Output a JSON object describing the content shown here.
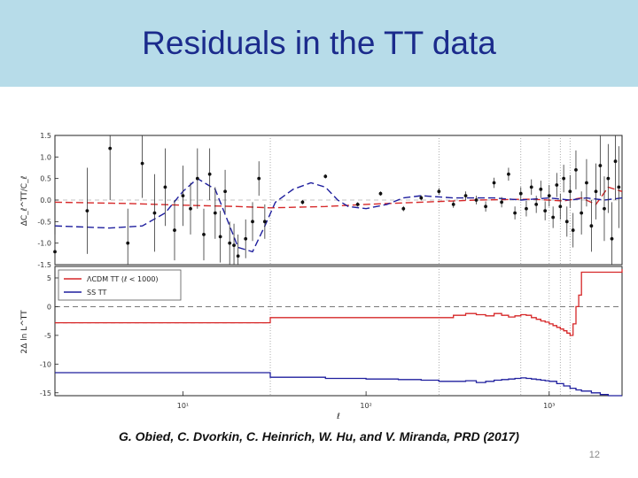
{
  "slide": {
    "title": "Residuals in the TT data",
    "caption": "G. Obied, C. Dvorkin, C. Heinrich, W. Hu, and V. Miranda, PRD  (2017)",
    "page_number": "12"
  },
  "colors": {
    "title_bar": "#b7dce9",
    "title_text": "#1b2b8c",
    "red_series": "#d62728",
    "blue_series": "#1f1f9e",
    "data_points": "#111111"
  },
  "chart_data": [
    {
      "type": "scatter",
      "panel": "top",
      "ylabel": "ΔC_ℓ^TT/C_ℓ",
      "xscale": "log",
      "xlim": [
        2,
        2500
      ],
      "ylim": [
        -1.5,
        1.5
      ],
      "yticks": [
        "1.5",
        "1.0",
        "0.5",
        "0.0",
        "-0.5",
        "-1.0",
        "-1.5"
      ],
      "ytick_values": [
        1.5,
        1.0,
        0.5,
        0.0,
        -0.5,
        -1.0,
        -1.5
      ],
      "vlines_x": [
        30,
        250,
        700,
        1000,
        1150,
        1300
      ],
      "points": [
        {
          "x": 2,
          "y": -1.2,
          "e": 0.4
        },
        {
          "x": 3,
          "y": -0.25,
          "e": 1.0
        },
        {
          "x": 4,
          "y": 1.2,
          "e": 1.2
        },
        {
          "x": 5,
          "y": -1.0,
          "e": 0.8
        },
        {
          "x": 6,
          "y": 0.85,
          "e": 0.8
        },
        {
          "x": 7,
          "y": -0.3,
          "e": 0.9
        },
        {
          "x": 8,
          "y": 0.3,
          "e": 0.9
        },
        {
          "x": 9,
          "y": -0.7,
          "e": 0.7
        },
        {
          "x": 10,
          "y": 0.1,
          "e": 0.7
        },
        {
          "x": 11,
          "y": -0.2,
          "e": 0.6
        },
        {
          "x": 12,
          "y": 0.5,
          "e": 0.7
        },
        {
          "x": 13,
          "y": -0.8,
          "e": 0.6
        },
        {
          "x": 14,
          "y": 0.6,
          "e": 0.6
        },
        {
          "x": 15,
          "y": -0.3,
          "e": 0.6
        },
        {
          "x": 16,
          "y": -0.85,
          "e": 0.6
        },
        {
          "x": 17,
          "y": 0.2,
          "e": 0.5
        },
        {
          "x": 18,
          "y": -1.0,
          "e": 0.5
        },
        {
          "x": 19,
          "y": -1.05,
          "e": 0.5
        },
        {
          "x": 20,
          "y": -1.3,
          "e": 0.5
        },
        {
          "x": 22,
          "y": -0.9,
          "e": 0.45
        },
        {
          "x": 24,
          "y": -0.5,
          "e": 0.45
        },
        {
          "x": 26,
          "y": 0.5,
          "e": 0.4
        },
        {
          "x": 28,
          "y": -0.5,
          "e": 0.4
        },
        {
          "x": 45,
          "y": -0.05,
          "e": 0.05
        },
        {
          "x": 60,
          "y": 0.55,
          "e": 0.05
        },
        {
          "x": 90,
          "y": -0.1,
          "e": 0.05
        },
        {
          "x": 120,
          "y": 0.15,
          "e": 0.05
        },
        {
          "x": 160,
          "y": -0.2,
          "e": 0.06
        },
        {
          "x": 200,
          "y": 0.05,
          "e": 0.06
        },
        {
          "x": 250,
          "y": 0.2,
          "e": 0.08
        },
        {
          "x": 300,
          "y": -0.1,
          "e": 0.08
        },
        {
          "x": 350,
          "y": 0.1,
          "e": 0.1
        },
        {
          "x": 400,
          "y": 0.0,
          "e": 0.1
        },
        {
          "x": 450,
          "y": -0.15,
          "e": 0.12
        },
        {
          "x": 500,
          "y": 0.4,
          "e": 0.12
        },
        {
          "x": 550,
          "y": -0.05,
          "e": 0.12
        },
        {
          "x": 600,
          "y": 0.6,
          "e": 0.15
        },
        {
          "x": 650,
          "y": -0.3,
          "e": 0.15
        },
        {
          "x": 700,
          "y": 0.15,
          "e": 0.15
        },
        {
          "x": 750,
          "y": -0.2,
          "e": 0.18
        },
        {
          "x": 800,
          "y": 0.3,
          "e": 0.18
        },
        {
          "x": 850,
          "y": -0.1,
          "e": 0.2
        },
        {
          "x": 900,
          "y": 0.25,
          "e": 0.2
        },
        {
          "x": 950,
          "y": -0.25,
          "e": 0.22
        },
        {
          "x": 1000,
          "y": 0.1,
          "e": 0.25
        },
        {
          "x": 1050,
          "y": -0.4,
          "e": 0.25
        },
        {
          "x": 1100,
          "y": 0.35,
          "e": 0.28
        },
        {
          "x": 1150,
          "y": -0.15,
          "e": 0.3
        },
        {
          "x": 1200,
          "y": 0.5,
          "e": 0.32
        },
        {
          "x": 1250,
          "y": -0.5,
          "e": 0.35
        },
        {
          "x": 1300,
          "y": 0.2,
          "e": 0.38
        },
        {
          "x": 1350,
          "y": -0.7,
          "e": 0.4
        },
        {
          "x": 1400,
          "y": 0.7,
          "e": 0.45
        },
        {
          "x": 1500,
          "y": -0.3,
          "e": 0.5
        },
        {
          "x": 1600,
          "y": 0.4,
          "e": 0.55
        },
        {
          "x": 1700,
          "y": -0.6,
          "e": 0.6
        },
        {
          "x": 1800,
          "y": 0.2,
          "e": 0.65
        },
        {
          "x": 1900,
          "y": 0.8,
          "e": 0.7
        },
        {
          "x": 2000,
          "y": -0.2,
          "e": 0.75
        },
        {
          "x": 2100,
          "y": 0.5,
          "e": 0.8
        },
        {
          "x": 2200,
          "y": -0.9,
          "e": 0.85
        },
        {
          "x": 2300,
          "y": 0.9,
          "e": 0.9
        },
        {
          "x": 2400,
          "y": 0.3,
          "e": 0.95
        }
      ],
      "series": [
        {
          "color": "#d62728",
          "dash": "8,4",
          "x": [
            2,
            5,
            10,
            20,
            30,
            60,
            100,
            200,
            400,
            800,
            1200,
            1500,
            1800,
            2100,
            2500
          ],
          "y": [
            -0.05,
            -0.08,
            -0.12,
            -0.15,
            -0.18,
            -0.15,
            -0.1,
            -0.05,
            0.0,
            0.02,
            -0.02,
            0.05,
            -0.1,
            0.3,
            0.2
          ]
        },
        {
          "color": "#1f1f9e",
          "dash": "8,4",
          "x": [
            2,
            4,
            6,
            8,
            10,
            12,
            15,
            18,
            20,
            24,
            28,
            32,
            40,
            50,
            60,
            70,
            80,
            100,
            130,
            160,
            200,
            300,
            500,
            700,
            1000,
            1300,
            1600,
            2000,
            2500
          ],
          "y": [
            -0.6,
            -0.65,
            -0.6,
            -0.3,
            0.2,
            0.5,
            0.25,
            -0.6,
            -1.1,
            -1.2,
            -0.6,
            -0.05,
            0.25,
            0.4,
            0.3,
            0.0,
            -0.15,
            -0.2,
            -0.1,
            0.05,
            0.1,
            0.05,
            0.05,
            0.0,
            0.05,
            0.0,
            0.05,
            0.0,
            0.05
          ]
        }
      ]
    },
    {
      "type": "line",
      "panel": "bottom",
      "ylabel": "2Δ ln L^TT",
      "xlabel": "ℓ",
      "xscale": "log",
      "xlim": [
        2,
        2500
      ],
      "ylim": [
        -15.5,
        7
      ],
      "yticks": [
        "5",
        "0",
        "-5",
        "-10",
        "-15"
      ],
      "ytick_values": [
        5,
        0,
        -5,
        -10,
        -15
      ],
      "xticks": [
        "10¹",
        "10²",
        "10³"
      ],
      "xtick_values": [
        10,
        100,
        1000
      ],
      "vlines_x": [
        30,
        250,
        700,
        1000,
        1150,
        1300
      ],
      "legend": {
        "placement": "top-left",
        "entries": [
          "ΛCDM TT (ℓ < 1000)",
          "SS TT"
        ]
      },
      "series": [
        {
          "name": "ΛCDM TT (ℓ < 1000)",
          "color": "#d62728",
          "x": [
            2,
            29.9,
            30,
            250,
            300,
            350,
            400,
            450,
            500,
            550,
            600,
            650,
            700,
            750,
            800,
            850,
            900,
            950,
            1000,
            1050,
            1100,
            1150,
            1200,
            1250,
            1300,
            1350,
            1400,
            1450,
            1500,
            2500
          ],
          "y": [
            -2.8,
            -2.8,
            -1.9,
            -1.9,
            -1.5,
            -1.2,
            -1.4,
            -1.6,
            -1.2,
            -1.5,
            -1.8,
            -1.6,
            -1.4,
            -1.5,
            -1.9,
            -2.2,
            -2.5,
            -2.7,
            -3.0,
            -3.3,
            -3.6,
            -3.9,
            -4.2,
            -4.6,
            -5.0,
            -3.0,
            0.0,
            2.0,
            6.0,
            6.5
          ]
        },
        {
          "name": "SS TT",
          "color": "#1f1f9e",
          "x": [
            2,
            29.9,
            30,
            60,
            100,
            150,
            200,
            250,
            300,
            350,
            400,
            450,
            500,
            550,
            600,
            650,
            700,
            750,
            800,
            850,
            900,
            950,
            1000,
            1100,
            1200,
            1300,
            1400,
            1500,
            1700,
            1900,
            2100,
            2300,
            2500
          ],
          "y": [
            -11.5,
            -11.5,
            -12.3,
            -12.5,
            -12.6,
            -12.7,
            -12.8,
            -13.0,
            -13.0,
            -12.9,
            -13.2,
            -13.0,
            -12.8,
            -12.7,
            -12.6,
            -12.5,
            -12.4,
            -12.5,
            -12.6,
            -12.7,
            -12.8,
            -12.9,
            -13.0,
            -13.4,
            -13.8,
            -14.2,
            -14.5,
            -14.7,
            -15.0,
            -15.3,
            -15.6,
            -15.9,
            -16.3
          ]
        }
      ]
    }
  ]
}
